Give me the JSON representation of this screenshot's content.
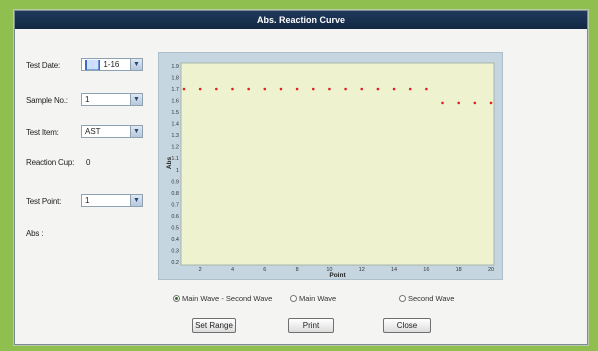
{
  "window": {
    "title": "Abs. Reaction Curve"
  },
  "form": {
    "test_date_label": "Test Date:",
    "test_date_value": "1-16",
    "sample_no_label": "Sample No.:",
    "sample_no_value": "1",
    "test_item_label": "Test Item:",
    "test_item_value": "AST",
    "reaction_cup_label": "Reaction Cup:",
    "reaction_cup_value": "0",
    "test_point_label": "Test Point:",
    "test_point_value": "1",
    "abs_label": "Abs :"
  },
  "radios": [
    {
      "label": "Main Wave - Second Wave",
      "selected": true
    },
    {
      "label": "Main Wave",
      "selected": false
    },
    {
      "label": "Second Wave",
      "selected": false
    }
  ],
  "buttons": {
    "set_range": "Set Range",
    "print": "Print",
    "close": "Close"
  },
  "colors": {
    "titlebar": "#1b3352",
    "plot_bg": "#eef2ce",
    "points": "#e02020"
  },
  "chart_data": {
    "type": "scatter",
    "xlabel": "Point",
    "ylabel": "Abs",
    "xlim": [
      1,
      20
    ],
    "ylim": [
      0.2,
      1.9
    ],
    "x_ticks": [
      "2",
      "4",
      "6",
      "8",
      "10",
      "12",
      "14",
      "16",
      "18",
      "20"
    ],
    "y_ticks": [
      "1.9",
      "1.8",
      "1.7",
      "1.6",
      "1.5",
      "1.4",
      "1.3",
      "1.2",
      "1.1",
      "1",
      "0.9",
      "0.8",
      "0.7",
      "0.6",
      "0.5",
      "0.4",
      "0.3",
      "0.2"
    ],
    "series": [
      {
        "x": [
          1,
          2,
          3,
          4,
          5,
          6,
          7,
          8,
          9,
          10,
          11,
          12,
          13,
          14,
          15,
          16,
          17,
          18,
          19,
          20
        ],
        "values": [
          1.7,
          1.7,
          1.7,
          1.7,
          1.7,
          1.7,
          1.7,
          1.7,
          1.7,
          1.7,
          1.7,
          1.7,
          1.7,
          1.7,
          1.7,
          1.7,
          1.58,
          1.58,
          1.58,
          1.58
        ]
      }
    ]
  }
}
